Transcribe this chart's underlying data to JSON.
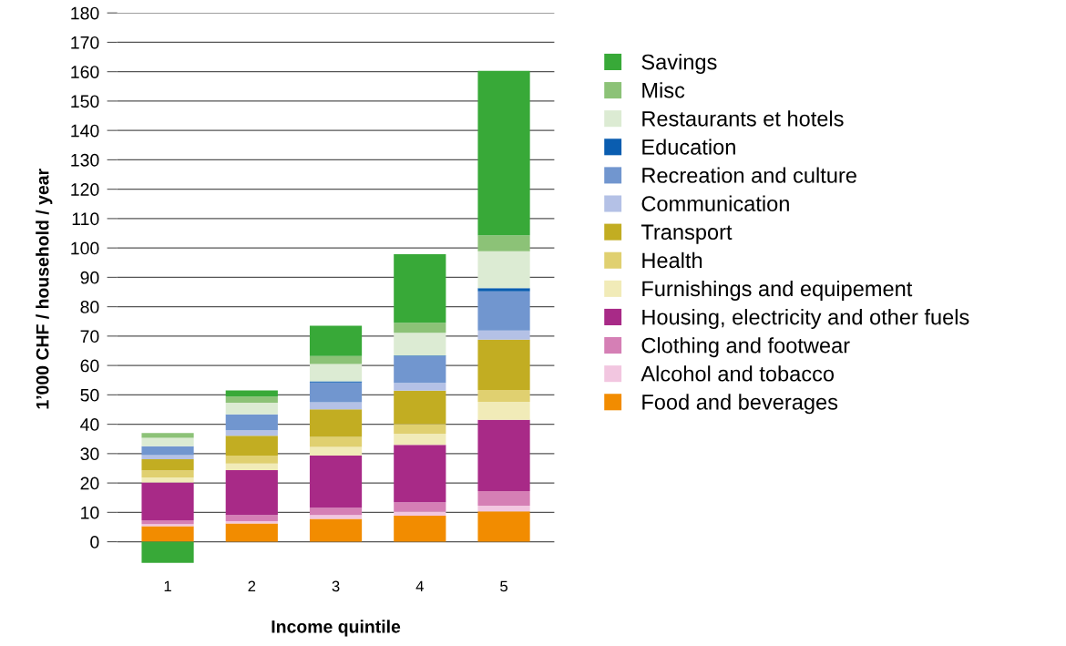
{
  "chart_data": {
    "type": "bar",
    "stacked": true,
    "xlabel": "Income quintile",
    "ylabel": "1’000 CHF / household / year",
    "categories": [
      "1",
      "2",
      "3",
      "4",
      "5"
    ],
    "series": [
      {
        "name": "Food and beverages",
        "color": "#f28c00",
        "values": [
          5.3,
          6.2,
          7.8,
          8.9,
          10.3
        ]
      },
      {
        "name": "Alcohol and tobacco",
        "color": "#f2c6e0",
        "values": [
          0.7,
          0.8,
          1.3,
          1.3,
          2.0
        ]
      },
      {
        "name": "Clothing and footwear",
        "color": "#d57fb5",
        "values": [
          1.3,
          2.1,
          2.5,
          3.2,
          4.9
        ]
      },
      {
        "name": "Housing, electricity and other fuels",
        "color": "#a82a87",
        "values": [
          12.9,
          15.3,
          17.7,
          19.6,
          24.3
        ]
      },
      {
        "name": "Furnishings and equipement",
        "color": "#f1ebb8",
        "values": [
          1.7,
          2.2,
          3.0,
          3.8,
          6.1
        ]
      },
      {
        "name": "Health",
        "color": "#e0d070",
        "values": [
          2.4,
          2.7,
          3.4,
          3.3,
          4.1
        ]
      },
      {
        "name": "Transport",
        "color": "#c2ad22",
        "values": [
          3.8,
          6.8,
          9.4,
          11.3,
          17.1
        ]
      },
      {
        "name": "Communication",
        "color": "#b4c1e6",
        "values": [
          1.4,
          1.8,
          2.4,
          2.7,
          3.1
        ]
      },
      {
        "name": "Recreation and culture",
        "color": "#7196cf",
        "values": [
          3.0,
          5.5,
          6.7,
          9.0,
          13.3
        ]
      },
      {
        "name": "Education",
        "color": "#0a5db0",
        "values": [
          null,
          null,
          0.4,
          0.3,
          1.1
        ]
      },
      {
        "name": "Restaurants et hotels",
        "color": "#dcebd3",
        "values": [
          2.9,
          3.9,
          5.9,
          7.7,
          12.6
        ]
      },
      {
        "name": "Misc",
        "color": "#8cc277",
        "values": [
          1.6,
          2.1,
          2.7,
          3.4,
          5.4
        ]
      },
      {
        "name": "Savings",
        "color": "#38a938",
        "values": [
          -7.2,
          2.1,
          10.3,
          23.4,
          56.0
        ]
      }
    ],
    "ylim": [
      -8,
      180
    ],
    "yticks": [
      0,
      10,
      20,
      30,
      40,
      50,
      60,
      70,
      80,
      90,
      100,
      110,
      120,
      130,
      140,
      150,
      160,
      170,
      180
    ],
    "grid": "y",
    "legend": "right"
  }
}
